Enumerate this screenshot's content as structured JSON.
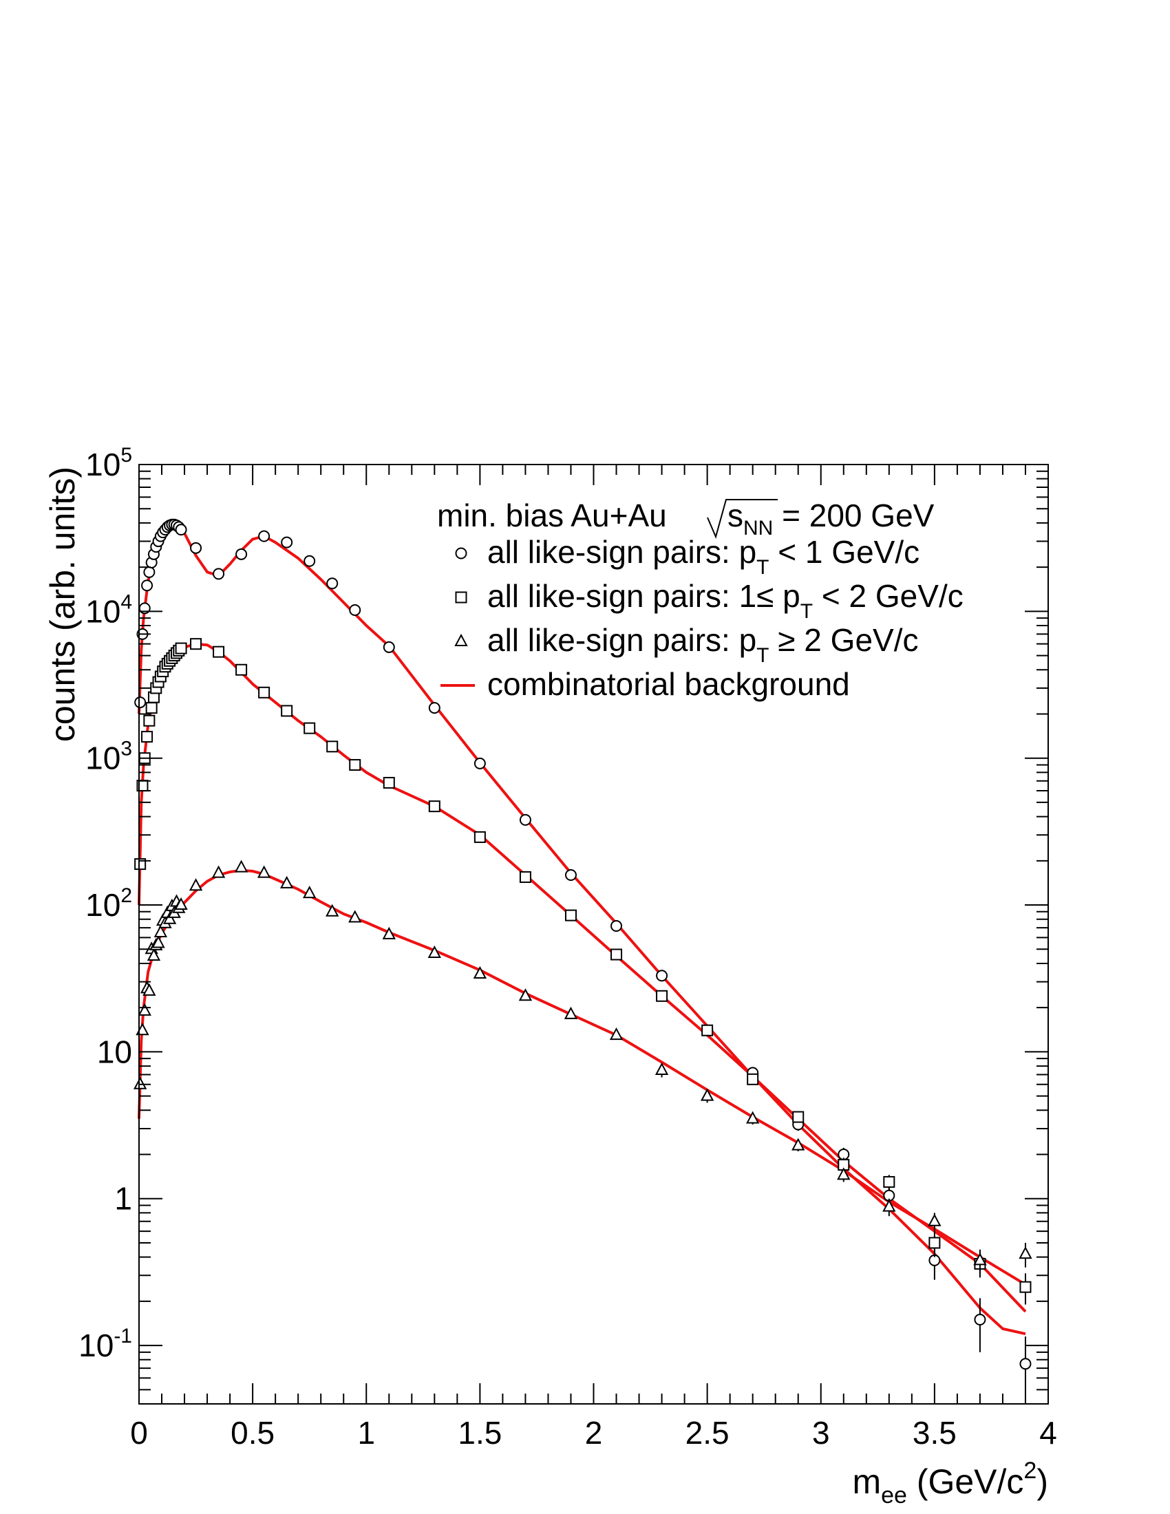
{
  "chart_data": {
    "type": "scatter",
    "title": "",
    "xlabel": {
      "main": "m",
      "sub": "ee",
      "rest": " (GeV/c",
      "sup": "2",
      "close": ")"
    },
    "ylabel": "counts (arb. units)",
    "xlim": [
      0,
      4
    ],
    "ylim": [
      0.04,
      100000
    ],
    "yscale": "log",
    "grid": false,
    "legend_position": "top-right",
    "x_ticks": [
      {
        "v": 0,
        "label": "0"
      },
      {
        "v": 0.5,
        "label": "0.5"
      },
      {
        "v": 1,
        "label": "1"
      },
      {
        "v": 1.5,
        "label": "1.5"
      },
      {
        "v": 2,
        "label": "2"
      },
      {
        "v": 2.5,
        "label": "2.5"
      },
      {
        "v": 3,
        "label": "3"
      },
      {
        "v": 3.5,
        "label": "3.5"
      },
      {
        "v": 4,
        "label": "4"
      }
    ],
    "y_ticks": [
      {
        "v": 0.1,
        "base": "10",
        "sup": "-1"
      },
      {
        "v": 1,
        "base": "1",
        "sup": ""
      },
      {
        "v": 10,
        "base": "10",
        "sup": ""
      },
      {
        "v": 100,
        "base": "10",
        "sup": "2"
      },
      {
        "v": 1000,
        "base": "10",
        "sup": "3"
      },
      {
        "v": 10000,
        "base": "10",
        "sup": "4"
      },
      {
        "v": 100000,
        "base": "10",
        "sup": "5"
      }
    ],
    "legend": {
      "header": {
        "pre": "min. bias Au+Au ",
        "s": "s",
        "sub": "NN",
        "post": " = 200 GeV"
      },
      "entries": [
        {
          "marker": "circle",
          "pre": "all like-sign pairs: p",
          "sub": "T",
          "post": " < 1 GeV/c"
        },
        {
          "marker": "square",
          "pre": "all like-sign pairs: 1≤ p",
          "sub": "T",
          "post": " < 2 GeV/c"
        },
        {
          "marker": "triangle",
          "pre": "all like-sign pairs: p",
          "sub": "T",
          "post": " ≥ 2 GeV/c"
        },
        {
          "marker": "line",
          "pre": "combinatorial background",
          "sub": "",
          "post": ""
        }
      ]
    },
    "line_color": "#ee1111",
    "series": [
      {
        "marker": "circle",
        "x": [
          0.005,
          0.015,
          0.025,
          0.035,
          0.045,
          0.055,
          0.065,
          0.075,
          0.085,
          0.095,
          0.105,
          0.115,
          0.125,
          0.135,
          0.145,
          0.155,
          0.165,
          0.175,
          0.185,
          0.25,
          0.35,
          0.45,
          0.55,
          0.65,
          0.75,
          0.85,
          0.95,
          1.1,
          1.3,
          1.5,
          1.7,
          1.9,
          2.1,
          2.3,
          2.5,
          2.7,
          2.9,
          3.1,
          3.3,
          3.5,
          3.7,
          3.9
        ],
        "y": [
          2400,
          7000,
          10500,
          15000,
          18500,
          21500,
          24500,
          27500,
          30000,
          32500,
          34500,
          36000,
          37500,
          38500,
          39000,
          39000,
          38500,
          37500,
          36000,
          27000,
          18000,
          24500,
          32500,
          29500,
          22000,
          15500,
          10200,
          5700,
          2200,
          920,
          380,
          160,
          72,
          33,
          14,
          7.2,
          3.2,
          2.0,
          1.05,
          0.38,
          0.15,
          0.075
        ],
        "err": [
          0,
          0,
          0,
          0,
          0,
          0,
          0,
          0,
          0,
          0,
          0,
          0,
          0,
          0,
          0,
          0,
          0,
          0,
          0,
          0,
          0,
          0,
          0,
          0,
          0,
          0,
          0,
          0,
          0,
          0,
          0,
          0,
          0,
          1.5,
          0.8,
          0.5,
          0.3,
          0.22,
          0.15,
          0.1,
          0.06,
          0.04
        ]
      },
      {
        "marker": "square",
        "x": [
          0.005,
          0.015,
          0.025,
          0.035,
          0.045,
          0.055,
          0.065,
          0.075,
          0.085,
          0.095,
          0.105,
          0.115,
          0.125,
          0.135,
          0.145,
          0.155,
          0.165,
          0.175,
          0.185,
          0.25,
          0.35,
          0.45,
          0.55,
          0.65,
          0.75,
          0.85,
          0.95,
          1.1,
          1.3,
          1.5,
          1.7,
          1.9,
          2.1,
          2.3,
          2.5,
          2.7,
          2.9,
          3.1,
          3.3,
          3.5,
          3.7,
          3.9
        ],
        "y": [
          190,
          650,
          1000,
          1400,
          1800,
          2200,
          2600,
          3000,
          3300,
          3600,
          3900,
          4200,
          4400,
          4600,
          4800,
          5000,
          5200,
          5400,
          5600,
          6000,
          5300,
          4000,
          2800,
          2100,
          1600,
          1200,
          900,
          680,
          470,
          290,
          155,
          85,
          46,
          24,
          14,
          6.5,
          3.6,
          1.7,
          1.3,
          0.5,
          0.36,
          0.25
        ],
        "err": [
          0,
          0,
          0,
          0,
          0,
          0,
          0,
          0,
          0,
          0,
          0,
          0,
          0,
          0,
          0,
          0,
          0,
          0,
          0,
          0,
          0,
          0,
          0,
          0,
          0,
          0,
          0,
          0,
          0,
          0,
          0,
          0,
          0,
          1.2,
          0.8,
          0.5,
          0.3,
          0.2,
          0.15,
          0.1,
          0.07,
          0.06
        ]
      },
      {
        "marker": "triangle",
        "x": [
          0.005,
          0.015,
          0.025,
          0.035,
          0.045,
          0.055,
          0.065,
          0.075,
          0.085,
          0.095,
          0.105,
          0.115,
          0.125,
          0.135,
          0.145,
          0.155,
          0.165,
          0.175,
          0.185,
          0.25,
          0.35,
          0.45,
          0.55,
          0.65,
          0.75,
          0.85,
          0.95,
          1.1,
          1.3,
          1.5,
          1.7,
          1.9,
          2.1,
          2.3,
          2.5,
          2.7,
          2.9,
          3.1,
          3.3,
          3.5,
          3.7,
          3.9
        ],
        "y": [
          6,
          14,
          19,
          27,
          26,
          50,
          45,
          53,
          55,
          65,
          78,
          75,
          88,
          80,
          98,
          88,
          105,
          95,
          100,
          135,
          165,
          180,
          165,
          140,
          120,
          90,
          82,
          63,
          47,
          34,
          24,
          18,
          13,
          7.5,
          5,
          3.5,
          2.3,
          1.45,
          0.88,
          0.7,
          0.38,
          0.42
        ],
        "err": [
          0,
          0,
          0,
          0,
          0,
          0,
          0,
          0,
          0,
          0,
          0,
          0,
          0,
          0,
          0,
          0,
          0,
          0,
          0,
          0,
          0,
          0,
          0,
          0,
          0,
          0,
          0,
          0,
          0,
          0,
          0,
          0,
          0,
          0.8,
          0.5,
          0.3,
          0.2,
          0.15,
          0.12,
          0.1,
          0.07,
          0.08
        ]
      }
    ],
    "background_curves": [
      {
        "for": "circle",
        "x": [
          0.0,
          0.01,
          0.02,
          0.04,
          0.06,
          0.08,
          0.1,
          0.12,
          0.14,
          0.16,
          0.18,
          0.2,
          0.25,
          0.3,
          0.35,
          0.4,
          0.45,
          0.5,
          0.55,
          0.6,
          0.7,
          0.8,
          0.9,
          1.0,
          1.1,
          1.3,
          1.5,
          1.7,
          1.9,
          2.1,
          2.3,
          2.5,
          2.7,
          2.9,
          3.1,
          3.3,
          3.5,
          3.7,
          3.8,
          3.9
        ],
        "y": [
          2000,
          5500,
          9000,
          16000,
          22000,
          27000,
          31000,
          35000,
          37500,
          38500,
          37500,
          34000,
          24000,
          18500,
          17500,
          21000,
          26000,
          31000,
          32500,
          29500,
          23000,
          16500,
          11500,
          8000,
          5800,
          2300,
          930,
          390,
          165,
          75,
          33,
          15,
          6.8,
          3.2,
          1.6,
          0.85,
          0.42,
          0.18,
          0.13,
          0.12
        ]
      },
      {
        "for": "square",
        "x": [
          0.0,
          0.01,
          0.02,
          0.04,
          0.06,
          0.08,
          0.1,
          0.12,
          0.14,
          0.16,
          0.18,
          0.2,
          0.25,
          0.3,
          0.35,
          0.4,
          0.5,
          0.6,
          0.7,
          0.8,
          0.9,
          1.0,
          1.1,
          1.3,
          1.5,
          1.7,
          1.9,
          2.1,
          2.3,
          2.5,
          2.7,
          2.9,
          3.1,
          3.3,
          3.5,
          3.7,
          3.9
        ],
        "y": [
          100,
          500,
          900,
          1700,
          2400,
          3000,
          3600,
          4100,
          4600,
          5000,
          5400,
          5700,
          6000,
          5900,
          5300,
          4600,
          3200,
          2400,
          1800,
          1400,
          1050,
          800,
          650,
          470,
          300,
          160,
          85,
          45,
          24,
          13,
          6.8,
          3.5,
          1.8,
          1.0,
          0.6,
          0.36,
          0.17
        ]
      },
      {
        "for": "triangle",
        "x": [
          0.0,
          0.01,
          0.02,
          0.04,
          0.06,
          0.08,
          0.1,
          0.12,
          0.14,
          0.16,
          0.18,
          0.2,
          0.25,
          0.3,
          0.35,
          0.4,
          0.45,
          0.5,
          0.55,
          0.6,
          0.7,
          0.8,
          0.9,
          1.0,
          1.1,
          1.3,
          1.5,
          1.7,
          1.9,
          2.1,
          2.3,
          2.5,
          2.7,
          2.9,
          3.1,
          3.3,
          3.5,
          3.7,
          3.9
        ],
        "y": [
          3.5,
          12,
          20,
          35,
          45,
          55,
          64,
          72,
          80,
          88,
          96,
          104,
          125,
          145,
          160,
          168,
          172,
          170,
          162,
          150,
          128,
          105,
          87,
          76,
          65,
          49,
          36,
          25,
          18,
          13,
          8.5,
          5.5,
          3.6,
          2.4,
          1.55,
          0.95,
          0.62,
          0.4,
          0.26
        ]
      }
    ]
  }
}
